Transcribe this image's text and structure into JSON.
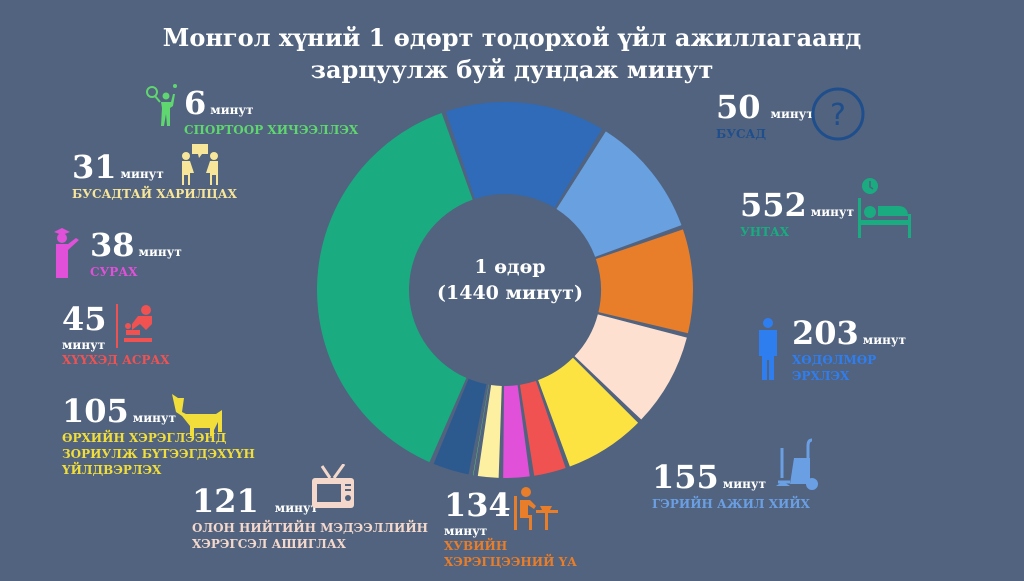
{
  "title_line1": "Монгол хүний 1 өдөрт тодорхой үйл ажиллагаанд",
  "title_line2": "зарцуулж буй дундаж минут",
  "center_line1": "1 өдөр",
  "center_line2": "(1440 минут)",
  "unit": "минут",
  "chart_data": {
    "type": "pie",
    "title": "Монгол хүний 1 өдөрт тодорхой үйл ажиллагаанд зарцуулж буй дундаж минут",
    "total": 1440,
    "categories": [
      "УНТАХ",
      "ХӨДӨЛМӨР ЭРХЛЭХ",
      "ГЭРИЙН АЖИЛ ХИЙХ",
      "ХУВИЙН ХЭРЭГЦЭЭНИЙ ҮА",
      "ОЛОН НИЙТИЙН МЭДЭЭЛЛИЙН ХЭРЭГСЭЛ АШИГЛАХ",
      "ӨРХИЙН ХЭРЭГЛЭЭНД ЗОРИУЛЖ БҮТЭЭГДЭХҮҮН ҮЙЛДВЭРЛЭХ",
      "ХҮҮХЭД АСРАХ",
      "СУРАХ",
      "БУСАДТАЙ ХАРИЛЦАХ",
      "СПОРТООР ХИЧЭЭЛЛЭХ",
      "БУСАД"
    ],
    "values": [
      552,
      203,
      155,
      134,
      121,
      105,
      45,
      38,
      31,
      6,
      50
    ],
    "colors": [
      "#1aab80",
      "#2f6bb8",
      "#68a0e0",
      "#e87d2a",
      "#fde0d0",
      "#fde342",
      "#f05252",
      "#e050d8",
      "#fdf0a0",
      "#5fd66f",
      "#2c5a8f"
    ]
  },
  "items": {
    "sleep": {
      "value": "552",
      "label": "УНТАХ",
      "color": "#1aab80"
    },
    "work": {
      "value": "203",
      "label_l1": "ХӨДӨЛМӨР",
      "label_l2": "ЭРХЛЭХ",
      "color": "#2f7ef0"
    },
    "house": {
      "value": "155",
      "label": "ГЭРИЙН АЖИЛ ХИЙХ",
      "color": "#6b9fe3"
    },
    "personal": {
      "value": "134",
      "label_l1": "ХУВИЙН",
      "label_l2": "ХЭРЭГЦЭЭНИЙ ҮА",
      "color": "#e87d2a"
    },
    "media": {
      "value": "121",
      "label_l1": "ОЛОН НИЙТИЙН МЭДЭЭЛЛИЙН",
      "label_l2": "ХЭРЭГСЭЛ АШИГЛАХ",
      "color": "#f4d8cc"
    },
    "produce": {
      "value": "105",
      "label_l1": "ӨРХИЙН ХЭРЭГЛЭЭНД",
      "label_l2": "ЗОРИУЛЖ БҮТЭЭГДЭХҮҮН",
      "label_l3": "ҮЙЛДВЭРЛЭХ",
      "color": "#f2de3a"
    },
    "child": {
      "value": "45",
      "label": "ХҮҮХЭД АСРАХ",
      "color": "#f05252"
    },
    "study": {
      "value": "38",
      "label": "СУРАХ",
      "color": "#e050d8"
    },
    "social": {
      "value": "31",
      "label": "БУСАДТАЙ ХАРИЛЦАХ",
      "color": "#f7e59a"
    },
    "sport": {
      "value": "6",
      "label": "СПОРТООР ХИЧЭЭЛЛЭХ",
      "color": "#5fd66f"
    },
    "other": {
      "value": "50",
      "label": "БУСАД",
      "color": "#1f4e8c"
    }
  }
}
